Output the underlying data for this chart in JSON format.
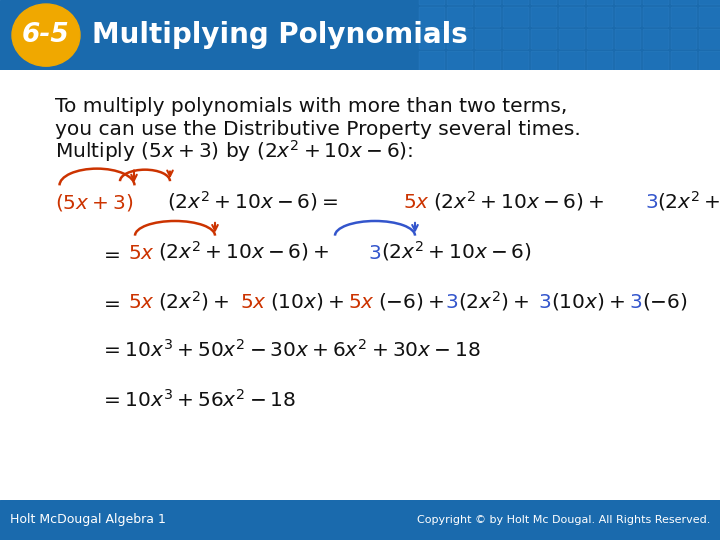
{
  "header_bg": "#1a6aad",
  "header_bg2": "#1565a0",
  "header_text": "Multiplying Polynomials",
  "header_badge_bg": "#f0a800",
  "header_badge_text": "6-5",
  "body_bg": "#ffffff",
  "footer_bg": "#1a6aad",
  "footer_left": "Holt McDougal Algebra 1",
  "footer_right": "Copyright © by Holt Mc Dougal. All Rights Reserved.",
  "red_color": "#cc3300",
  "blue_color": "#3355cc",
  "black_color": "#111111",
  "fig_width": 7.2,
  "fig_height": 5.4,
  "dpi": 100
}
